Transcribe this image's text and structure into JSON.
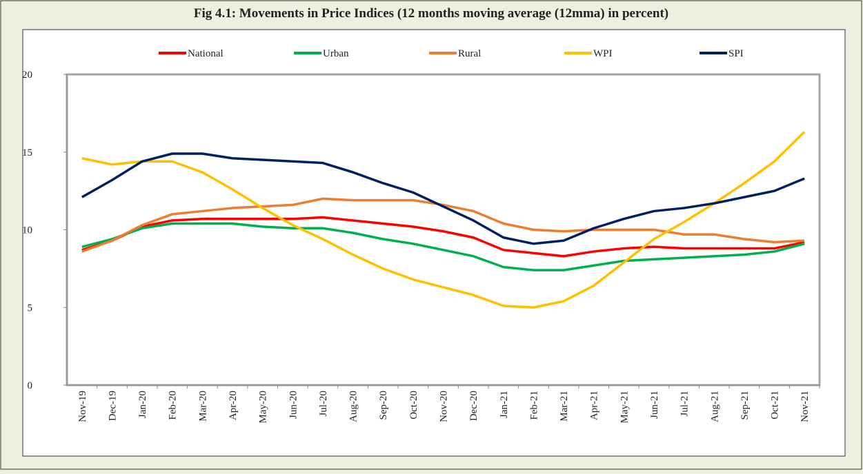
{
  "chart_data": {
    "type": "line",
    "title": "Fig 4.1: Movements in Price Indices (12 months moving average (12mma) in percent)",
    "categories": [
      "Nov-19",
      "Dec-19",
      "Jan-20",
      "Feb-20",
      "Mar-20",
      "Apr-20",
      "May-20",
      "Jun-20",
      "Jul-20",
      "Aug-20",
      "Sep-20",
      "Oct-20",
      "Nov-20",
      "Dec-20",
      "Jan-21",
      "Feb-21",
      "Mar-21",
      "Apr-21",
      "May-21",
      "Jun-21",
      "Jul-21",
      "Aug-21",
      "Sep-21",
      "Oct-21",
      "Nov-21"
    ],
    "series": [
      {
        "name": "National",
        "color": "#ff0000",
        "values": [
          8.7,
          9.3,
          10.2,
          10.6,
          10.7,
          10.7,
          10.7,
          10.7,
          10.8,
          10.6,
          10.4,
          10.2,
          9.9,
          9.5,
          8.7,
          8.5,
          8.3,
          8.6,
          8.8,
          8.9,
          8.8,
          8.8,
          8.8,
          8.8,
          9.2
        ]
      },
      {
        "name": "Urban",
        "color": "#00b050",
        "values": [
          8.9,
          9.4,
          10.1,
          10.4,
          10.4,
          10.4,
          10.2,
          10.1,
          10.1,
          9.8,
          9.4,
          9.1,
          8.7,
          8.3,
          7.6,
          7.4,
          7.4,
          7.7,
          8.0,
          8.1,
          8.2,
          8.3,
          8.4,
          8.6,
          9.1
        ]
      },
      {
        "name": "Rural",
        "color": "#ed7d31",
        "values": [
          8.6,
          9.3,
          10.3,
          11.0,
          11.2,
          11.4,
          11.5,
          11.6,
          12.0,
          11.9,
          11.9,
          11.9,
          11.6,
          11.2,
          10.4,
          10.0,
          9.9,
          10.0,
          10.0,
          10.0,
          9.7,
          9.7,
          9.4,
          9.2,
          9.3
        ]
      },
      {
        "name": "WPI",
        "color": "#ffc000",
        "values": [
          14.6,
          14.2,
          14.4,
          14.4,
          13.7,
          12.6,
          11.4,
          10.3,
          9.4,
          8.4,
          7.5,
          6.8,
          6.3,
          5.8,
          5.1,
          5.0,
          5.4,
          6.4,
          7.9,
          9.4,
          10.5,
          11.7,
          13.0,
          14.4,
          16.3
        ]
      },
      {
        "name": "SPI",
        "color": "#002060",
        "values": [
          12.1,
          13.2,
          14.4,
          14.9,
          14.9,
          14.6,
          14.5,
          14.4,
          14.3,
          13.7,
          13.0,
          12.4,
          11.5,
          10.6,
          9.5,
          9.1,
          9.3,
          10.1,
          10.7,
          11.2,
          11.4,
          11.7,
          12.1,
          12.5,
          13.3
        ]
      }
    ],
    "ylim": [
      0,
      20
    ],
    "yticks": [
      0,
      5,
      10,
      15,
      20
    ]
  }
}
